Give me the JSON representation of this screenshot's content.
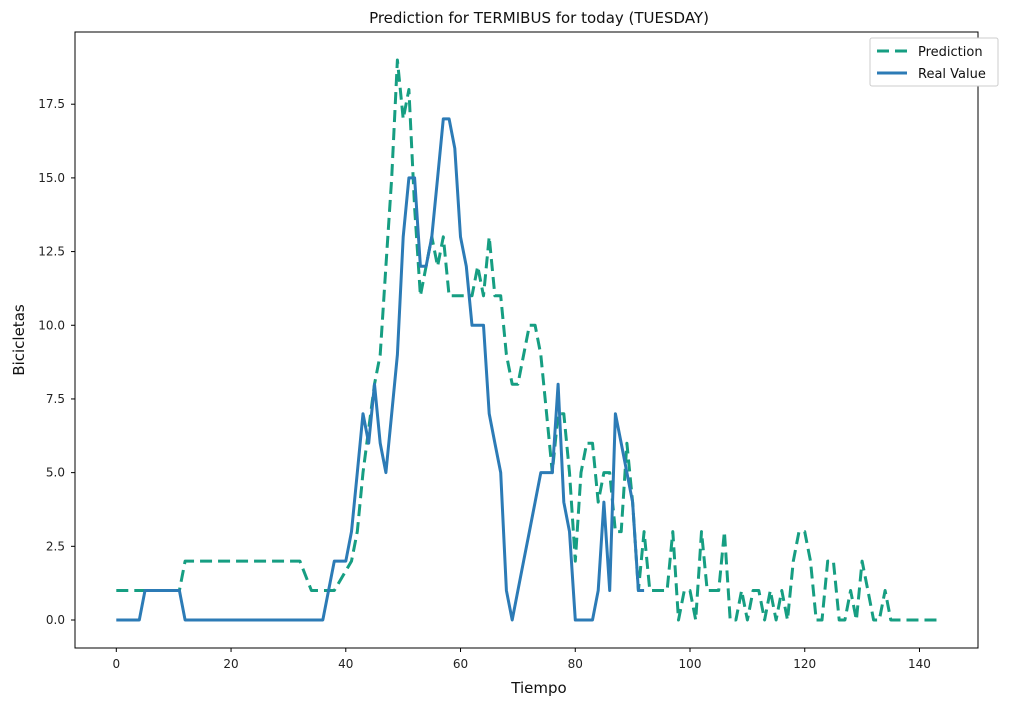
{
  "chart_data": {
    "type": "line",
    "title": "Prediction for TERMIBUS for today (TUESDAY)",
    "xlabel": "Tiempo",
    "ylabel": "Bicicletas",
    "xlim": [
      -7.2,
      150.2
    ],
    "ylim": [
      -0.95,
      19.95
    ],
    "xticks": [
      "0",
      "20",
      "40",
      "60",
      "80",
      "100",
      "120",
      "140"
    ],
    "yticks": [
      "0.0",
      "2.5",
      "5.0",
      "7.5",
      "10.0",
      "12.5",
      "15.0",
      "17.5"
    ],
    "grid": false,
    "legend_position": "top-right",
    "series": [
      {
        "name": "Prediction",
        "color": "#169e82",
        "style": "dashed",
        "points": [
          [
            0,
            1
          ],
          [
            11,
            1
          ],
          [
            12,
            2
          ],
          [
            32,
            2
          ],
          [
            34,
            1
          ],
          [
            38,
            1
          ],
          [
            41,
            2
          ],
          [
            42,
            3
          ],
          [
            43,
            5
          ],
          [
            45,
            8
          ],
          [
            46,
            9
          ],
          [
            47,
            12
          ],
          [
            48,
            15
          ],
          [
            49,
            19
          ],
          [
            50,
            17
          ],
          [
            51,
            18
          ],
          [
            52,
            14
          ],
          [
            53,
            11
          ],
          [
            54,
            12
          ],
          [
            55,
            13
          ],
          [
            56,
            12
          ],
          [
            57,
            13
          ],
          [
            58,
            11
          ],
          [
            62,
            11
          ],
          [
            63,
            12
          ],
          [
            64,
            11
          ],
          [
            65,
            13
          ],
          [
            66,
            11
          ],
          [
            67,
            11
          ],
          [
            68,
            9
          ],
          [
            69,
            8
          ],
          [
            70,
            8
          ],
          [
            72,
            10
          ],
          [
            73,
            10
          ],
          [
            74,
            9
          ],
          [
            75,
            7
          ],
          [
            76,
            5
          ],
          [
            77,
            7
          ],
          [
            78,
            7
          ],
          [
            79,
            5
          ],
          [
            80,
            2
          ],
          [
            81,
            5
          ],
          [
            82,
            6
          ],
          [
            83,
            6
          ],
          [
            84,
            4
          ],
          [
            85,
            5
          ],
          [
            86,
            5
          ],
          [
            87,
            3
          ],
          [
            88,
            3
          ],
          [
            89,
            6
          ],
          [
            90,
            4
          ],
          [
            91,
            1
          ],
          [
            92,
            3
          ],
          [
            93,
            1
          ],
          [
            96,
            1
          ],
          [
            97,
            3
          ],
          [
            98,
            0
          ],
          [
            99,
            1
          ],
          [
            100,
            1
          ],
          [
            101,
            0
          ],
          [
            102,
            3
          ],
          [
            103,
            1
          ],
          [
            105,
            1
          ],
          [
            106,
            3
          ],
          [
            107,
            0
          ],
          [
            108,
            0
          ],
          [
            109,
            1
          ],
          [
            110,
            0
          ],
          [
            111,
            1
          ],
          [
            112,
            1
          ],
          [
            113,
            0
          ],
          [
            114,
            1
          ],
          [
            115,
            0
          ],
          [
            116,
            1
          ],
          [
            117,
            0
          ],
          [
            118,
            2
          ],
          [
            119,
            3
          ],
          [
            120,
            3
          ],
          [
            121,
            2
          ],
          [
            122,
            0
          ],
          [
            123,
            0
          ],
          [
            124,
            2
          ],
          [
            125,
            2
          ],
          [
            126,
            0
          ],
          [
            127,
            0
          ],
          [
            128,
            1
          ],
          [
            129,
            0
          ],
          [
            130,
            2
          ],
          [
            131,
            1
          ],
          [
            132,
            0
          ],
          [
            133,
            0
          ],
          [
            134,
            1
          ],
          [
            135,
            0
          ],
          [
            143,
            0
          ]
        ]
      },
      {
        "name": "Real Value",
        "color": "#2c7bb6",
        "style": "solid",
        "points": [
          [
            0,
            0
          ],
          [
            4,
            0
          ],
          [
            5,
            1
          ],
          [
            11,
            1
          ],
          [
            12,
            0
          ],
          [
            36,
            0
          ],
          [
            38,
            2
          ],
          [
            40,
            2
          ],
          [
            41,
            3
          ],
          [
            42,
            5
          ],
          [
            43,
            7
          ],
          [
            44,
            6
          ],
          [
            45,
            8
          ],
          [
            46,
            6
          ],
          [
            47,
            5
          ],
          [
            48,
            7
          ],
          [
            49,
            9
          ],
          [
            50,
            13
          ],
          [
            51,
            15
          ],
          [
            52,
            15
          ],
          [
            53,
            12
          ],
          [
            54,
            12
          ],
          [
            55,
            13
          ],
          [
            56,
            15
          ],
          [
            57,
            17
          ],
          [
            58,
            17
          ],
          [
            59,
            16
          ],
          [
            60,
            13
          ],
          [
            61,
            12
          ],
          [
            62,
            10
          ],
          [
            64,
            10
          ],
          [
            65,
            7
          ],
          [
            66,
            6
          ],
          [
            67,
            5
          ],
          [
            68,
            1
          ],
          [
            69,
            0
          ],
          [
            70,
            1
          ],
          [
            71,
            2
          ],
          [
            72,
            3
          ],
          [
            73,
            4
          ],
          [
            74,
            5
          ],
          [
            76,
            5
          ],
          [
            77,
            8
          ],
          [
            78,
            4
          ],
          [
            79,
            3
          ],
          [
            80,
            0
          ],
          [
            83,
            0
          ],
          [
            84,
            1
          ],
          [
            85,
            4
          ],
          [
            86,
            1
          ],
          [
            87,
            7
          ],
          [
            88,
            6
          ],
          [
            89,
            5
          ],
          [
            90,
            4
          ],
          [
            91,
            1
          ],
          [
            92,
            1
          ]
        ]
      }
    ]
  }
}
